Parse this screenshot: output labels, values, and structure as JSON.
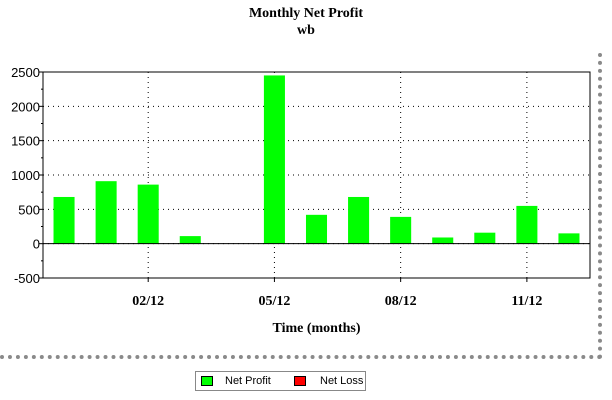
{
  "chart_data": {
    "type": "bar",
    "title": "Monthly Net Profit",
    "subtitle": "wb",
    "xlabel": "Time (months)",
    "ylabel": "",
    "ylim": [
      -500,
      2500
    ],
    "yticks": [
      "-500",
      "0",
      "500",
      "1000",
      "1500",
      "2000",
      "2500"
    ],
    "xticks": [
      "02/12",
      "05/12",
      "08/12",
      "11/12"
    ],
    "grid": true,
    "legend_position": "bottom",
    "legend": [
      {
        "label": "Net Profit",
        "color": "#00ff00"
      },
      {
        "label": "Net Loss",
        "color": "#ff0000"
      }
    ],
    "series": [
      {
        "name": "Net Profit",
        "color": "#00ff00",
        "x": [
          "12/11",
          "01/12",
          "02/12",
          "03/12",
          "04/12",
          "05/12",
          "06/12",
          "07/12",
          "08/12",
          "09/12",
          "10/12",
          "11/12",
          "12/12"
        ],
        "values": [
          680,
          910,
          860,
          110,
          0,
          2450,
          420,
          680,
          390,
          90,
          160,
          550,
          150
        ]
      },
      {
        "name": "Net Loss",
        "color": "#ff0000",
        "x": [
          "12/11",
          "01/12",
          "02/12",
          "03/12",
          "04/12",
          "05/12",
          "06/12",
          "07/12",
          "08/12",
          "09/12",
          "10/12",
          "11/12",
          "12/12"
        ],
        "values": [
          0,
          0,
          0,
          0,
          0,
          0,
          0,
          0,
          0,
          0,
          0,
          0,
          0
        ]
      }
    ]
  }
}
